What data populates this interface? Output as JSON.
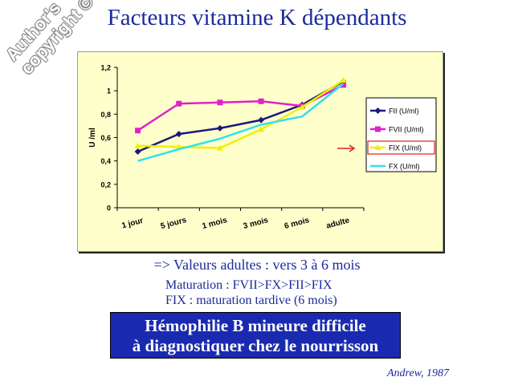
{
  "slide": {
    "title": "Facteurs vitamine K dépendants",
    "watermark_line1": "Author's",
    "watermark_line2": "copyright ©",
    "summary": "=> Valeurs adultes : vers 3 à 6 mois",
    "note1": "Maturation : FVII>FX>FII>FIX",
    "note2": "FIX  : maturation tardive (6 mois)",
    "callout_line1": "Hémophilie B mineure difficile",
    "callout_line2": "à diagnostiquer chez le nourrisson",
    "citation": "Andrew, 1987",
    "highlight_color": "#e0201a"
  },
  "chart_data": {
    "type": "line",
    "categories": [
      "1 jour",
      "5 jours",
      "1 mois",
      "3 mois",
      "6 mois",
      "adulte"
    ],
    "ylabel": "U /ml",
    "ylim": [
      0,
      1.2
    ],
    "yticks": [
      "0",
      "0,2",
      "0,4",
      "0,6",
      "0,8",
      "1",
      "1,2"
    ],
    "legend_position": "right",
    "highlighted_series": "FIX (U/ml)",
    "series": [
      {
        "name": "FII (U/ml)",
        "color": "#1a1a7a",
        "marker": "diamond",
        "values": [
          0.48,
          0.63,
          0.68,
          0.75,
          0.88,
          1.08
        ]
      },
      {
        "name": "FVII (U/ml)",
        "color": "#e020c8",
        "marker": "square",
        "values": [
          0.66,
          0.89,
          0.9,
          0.91,
          0.87,
          1.05
        ]
      },
      {
        "name": "FIX (U/ml)",
        "color": "#f0f000",
        "marker": "triangle",
        "values": [
          0.53,
          0.52,
          0.51,
          0.67,
          0.86,
          1.09
        ]
      },
      {
        "name": "FX (U/ml)",
        "color": "#30e0f0",
        "marker": "none",
        "values": [
          0.4,
          0.5,
          0.59,
          0.71,
          0.78,
          1.06
        ]
      }
    ]
  }
}
